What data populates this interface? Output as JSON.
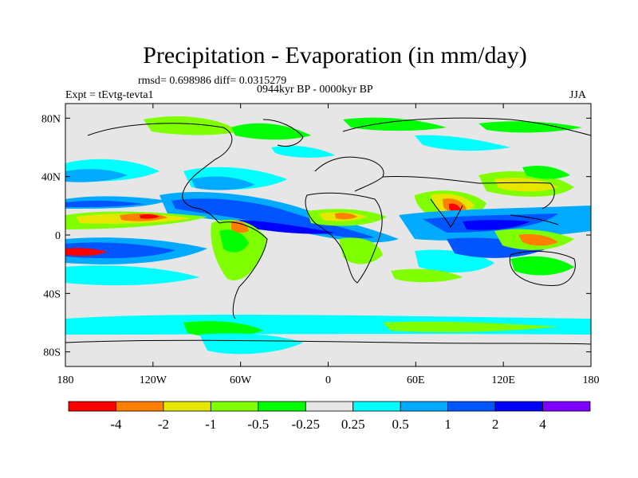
{
  "chart_data": {
    "type": "heatmap",
    "title": "Precipitation - Evaporation (in mm/day)",
    "stats": "rmsd= 0.698986 diff= 0.0315279",
    "experiment": "Expt = tEvtg-tevta1",
    "period": "0944kyr BP - 0000kyr BP",
    "season": "JJA",
    "x_ticks": [
      "180",
      "120W",
      "60W",
      "0",
      "60E",
      "120E",
      "180"
    ],
    "x_tick_values": [
      -180,
      -120,
      -60,
      0,
      60,
      120,
      180
    ],
    "y_ticks": [
      "80N",
      "40N",
      "0",
      "40S",
      "80S"
    ],
    "y_tick_values": [
      80,
      40,
      0,
      -40,
      -80
    ],
    "xlim": [
      -180,
      180
    ],
    "ylim": [
      -90,
      90
    ],
    "colorbar_levels": [
      "-4",
      "-2",
      "-1",
      "-0.5",
      "-0.25",
      "0.25",
      "0.5",
      "1",
      "2",
      "4"
    ],
    "colorbar_colors": [
      "#ff0000",
      "#ff8000",
      "#e6e600",
      "#80ff00",
      "#00ff00",
      "#e6e6e6",
      "#00ffff",
      "#00aaff",
      "#0055ff",
      "#0000ff",
      "#8000ff"
    ]
  }
}
